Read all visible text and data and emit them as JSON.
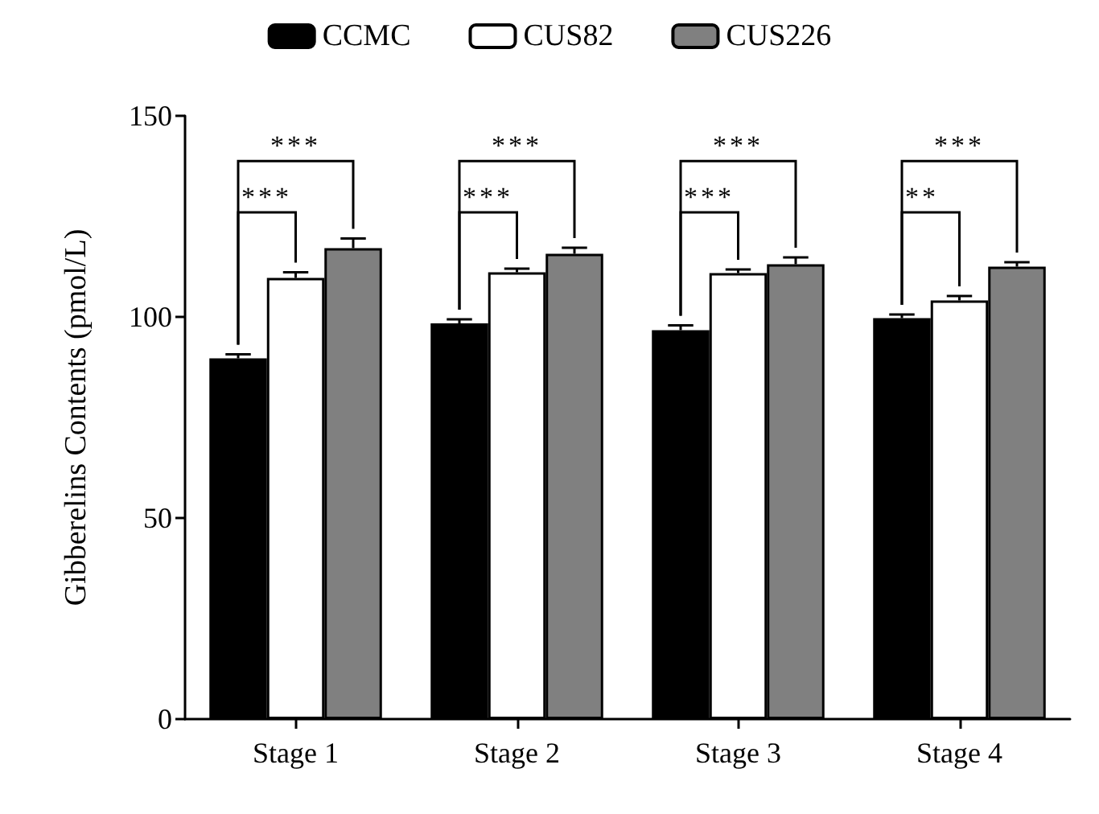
{
  "chart_data": {
    "type": "bar",
    "ylabel": "Gibberelins Contents (pmol/L)",
    "categories": [
      "Stage 1",
      "Stage 2",
      "Stage 3",
      "Stage 4"
    ],
    "series": [
      {
        "name": "CCMC",
        "color": "#000000",
        "values": [
          89.7,
          98.4,
          96.7,
          99.7
        ],
        "errors": [
          1.0,
          1.0,
          1.2,
          0.9
        ]
      },
      {
        "name": "CUS82",
        "color": "#ffffff",
        "values": [
          109.7,
          111.1,
          110.9,
          104.1
        ],
        "errors": [
          1.4,
          0.9,
          0.9,
          1.1
        ]
      },
      {
        "name": "CUS226",
        "color": "#808080",
        "values": [
          117.1,
          115.7,
          113.1,
          112.5
        ],
        "errors": [
          2.4,
          1.5,
          1.7,
          1.1
        ]
      }
    ],
    "ylim": [
      0,
      150
    ],
    "yticks": [
      0,
      50,
      100,
      150
    ],
    "grid": false,
    "legend": "top",
    "annotations": [
      "***",
      "***",
      "***",
      "***",
      "***",
      "***",
      "**",
      "***"
    ]
  }
}
